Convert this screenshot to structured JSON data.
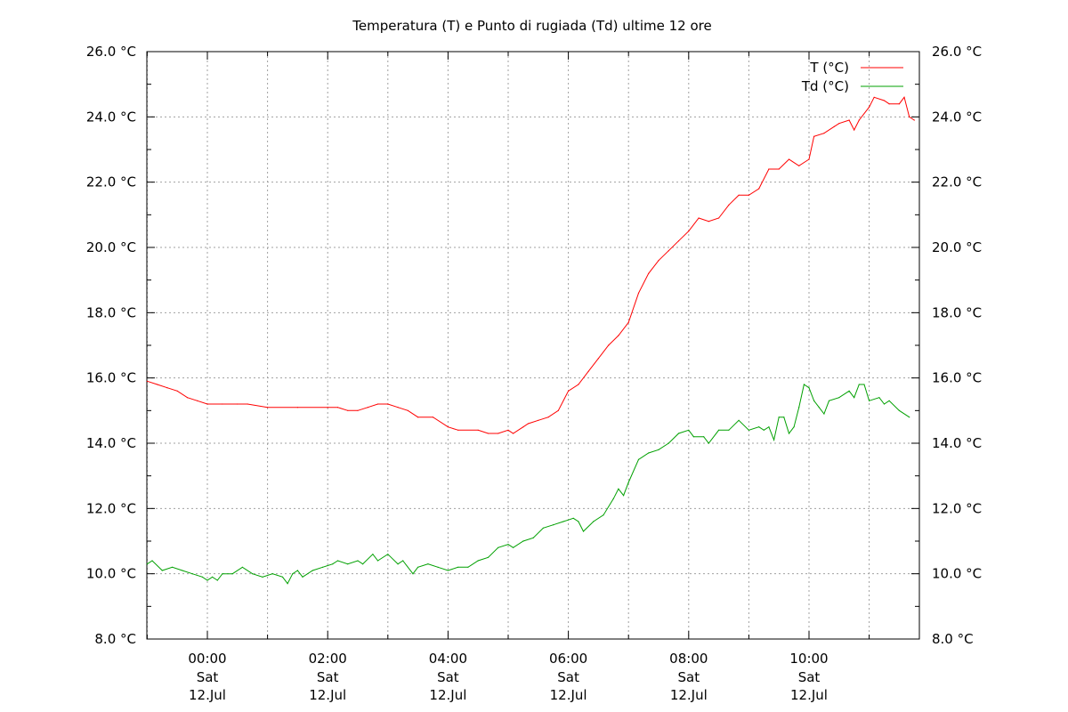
{
  "chart_data": {
    "type": "line",
    "title": "Temperatura (T) e Punto di rugiada (Td) ultime 12 ore",
    "xlabel": "",
    "ylabel": "",
    "ylim": [
      8.0,
      26.0
    ],
    "y_ticks": [
      8.0,
      10.0,
      12.0,
      14.0,
      16.0,
      18.0,
      20.0,
      22.0,
      24.0,
      26.0
    ],
    "y_tick_labels": [
      "8.0 °C",
      "10.0 °C",
      "12.0 °C",
      "14.0 °C",
      "16.0 °C",
      "18.0 °C",
      "20.0 °C",
      "22.0 °C",
      "24.0 °C",
      "26.0 °C"
    ],
    "xlim": [
      "11 Jul 23:00",
      "12 Jul 11:55"
    ],
    "x_ticks": [
      {
        "time": "00:00",
        "day": "Sat",
        "date": "12.Jul"
      },
      {
        "time": "02:00",
        "day": "Sat",
        "date": "12.Jul"
      },
      {
        "time": "04:00",
        "day": "Sat",
        "date": "12.Jul"
      },
      {
        "time": "06:00",
        "day": "Sat",
        "date": "12.Jul"
      },
      {
        "time": "08:00",
        "day": "Sat",
        "date": "12.Jul"
      },
      {
        "time": "10:00",
        "day": "Sat",
        "date": "12.Jul"
      }
    ],
    "grid": true,
    "legend_position": "top-right",
    "series": [
      {
        "name": "T (°C)",
        "color": "#ff0000",
        "points": [
          [
            "23:00",
            15.9
          ],
          [
            "23:10",
            15.8
          ],
          [
            "23:20",
            15.7
          ],
          [
            "23:30",
            15.6
          ],
          [
            "23:40",
            15.4
          ],
          [
            "23:50",
            15.3
          ],
          [
            "00:00",
            15.2
          ],
          [
            "00:15",
            15.2
          ],
          [
            "00:30",
            15.2
          ],
          [
            "00:40",
            15.2
          ],
          [
            "01:00",
            15.1
          ],
          [
            "01:30",
            15.1
          ],
          [
            "02:00",
            15.1
          ],
          [
            "02:10",
            15.1
          ],
          [
            "02:20",
            15.0
          ],
          [
            "02:30",
            15.0
          ],
          [
            "02:40",
            15.1
          ],
          [
            "02:50",
            15.2
          ],
          [
            "03:00",
            15.2
          ],
          [
            "03:10",
            15.1
          ],
          [
            "03:20",
            15.0
          ],
          [
            "03:30",
            14.8
          ],
          [
            "03:45",
            14.8
          ],
          [
            "04:00",
            14.5
          ],
          [
            "04:10",
            14.4
          ],
          [
            "04:30",
            14.4
          ],
          [
            "04:40",
            14.3
          ],
          [
            "04:50",
            14.3
          ],
          [
            "05:00",
            14.4
          ],
          [
            "05:05",
            14.3
          ],
          [
            "05:15",
            14.5
          ],
          [
            "05:20",
            14.6
          ],
          [
            "05:30",
            14.7
          ],
          [
            "05:40",
            14.8
          ],
          [
            "05:50",
            15.0
          ],
          [
            "06:00",
            15.6
          ],
          [
            "06:10",
            15.8
          ],
          [
            "06:20",
            16.2
          ],
          [
            "06:30",
            16.6
          ],
          [
            "06:40",
            17.0
          ],
          [
            "06:50",
            17.3
          ],
          [
            "07:00",
            17.7
          ],
          [
            "07:10",
            18.6
          ],
          [
            "07:20",
            19.2
          ],
          [
            "07:30",
            19.6
          ],
          [
            "07:40",
            19.9
          ],
          [
            "07:50",
            20.2
          ],
          [
            "08:00",
            20.5
          ],
          [
            "08:10",
            20.9
          ],
          [
            "08:20",
            20.8
          ],
          [
            "08:30",
            20.9
          ],
          [
            "08:40",
            21.3
          ],
          [
            "08:50",
            21.6
          ],
          [
            "09:00",
            21.6
          ],
          [
            "09:10",
            21.8
          ],
          [
            "09:20",
            22.4
          ],
          [
            "09:30",
            22.4
          ],
          [
            "09:40",
            22.7
          ],
          [
            "09:50",
            22.5
          ],
          [
            "10:00",
            22.7
          ],
          [
            "10:05",
            23.4
          ],
          [
            "10:15",
            23.5
          ],
          [
            "10:25",
            23.7
          ],
          [
            "10:30",
            23.8
          ],
          [
            "10:40",
            23.9
          ],
          [
            "10:45",
            23.6
          ],
          [
            "10:50",
            23.9
          ],
          [
            "11:00",
            24.3
          ],
          [
            "11:05",
            24.6
          ],
          [
            "11:15",
            24.5
          ],
          [
            "11:20",
            24.4
          ],
          [
            "11:30",
            24.4
          ],
          [
            "11:35",
            24.6
          ],
          [
            "11:40",
            24.0
          ],
          [
            "11:45",
            23.9
          ]
        ]
      },
      {
        "name": "Td (°C)",
        "color": "#00a000",
        "points": [
          [
            "23:00",
            10.3
          ],
          [
            "23:05",
            10.4
          ],
          [
            "23:15",
            10.1
          ],
          [
            "23:25",
            10.2
          ],
          [
            "23:35",
            10.1
          ],
          [
            "23:45",
            10.0
          ],
          [
            "23:55",
            9.9
          ],
          [
            "00:00",
            9.8
          ],
          [
            "00:05",
            9.9
          ],
          [
            "00:10",
            9.8
          ],
          [
            "00:15",
            10.0
          ],
          [
            "00:25",
            10.0
          ],
          [
            "00:35",
            10.2
          ],
          [
            "00:45",
            10.0
          ],
          [
            "00:55",
            9.9
          ],
          [
            "01:05",
            10.0
          ],
          [
            "01:15",
            9.9
          ],
          [
            "01:20",
            9.7
          ],
          [
            "01:25",
            10.0
          ],
          [
            "01:30",
            10.1
          ],
          [
            "01:35",
            9.9
          ],
          [
            "01:45",
            10.1
          ],
          [
            "01:55",
            10.2
          ],
          [
            "02:05",
            10.3
          ],
          [
            "02:10",
            10.4
          ],
          [
            "02:20",
            10.3
          ],
          [
            "02:30",
            10.4
          ],
          [
            "02:35",
            10.3
          ],
          [
            "02:45",
            10.6
          ],
          [
            "02:50",
            10.4
          ],
          [
            "03:00",
            10.6
          ],
          [
            "03:10",
            10.3
          ],
          [
            "03:15",
            10.4
          ],
          [
            "03:25",
            10.0
          ],
          [
            "03:30",
            10.2
          ],
          [
            "03:40",
            10.3
          ],
          [
            "03:50",
            10.2
          ],
          [
            "04:00",
            10.1
          ],
          [
            "04:10",
            10.2
          ],
          [
            "04:20",
            10.2
          ],
          [
            "04:30",
            10.4
          ],
          [
            "04:40",
            10.5
          ],
          [
            "04:50",
            10.8
          ],
          [
            "05:00",
            10.9
          ],
          [
            "05:05",
            10.8
          ],
          [
            "05:15",
            11.0
          ],
          [
            "05:25",
            11.1
          ],
          [
            "05:35",
            11.4
          ],
          [
            "05:45",
            11.5
          ],
          [
            "05:55",
            11.6
          ],
          [
            "06:05",
            11.7
          ],
          [
            "06:10",
            11.6
          ],
          [
            "06:15",
            11.3
          ],
          [
            "06:25",
            11.6
          ],
          [
            "06:35",
            11.8
          ],
          [
            "06:45",
            12.3
          ],
          [
            "06:50",
            12.6
          ],
          [
            "06:55",
            12.4
          ],
          [
            "07:00",
            12.8
          ],
          [
            "07:10",
            13.5
          ],
          [
            "07:20",
            13.7
          ],
          [
            "07:30",
            13.8
          ],
          [
            "07:40",
            14.0
          ],
          [
            "07:50",
            14.3
          ],
          [
            "08:00",
            14.4
          ],
          [
            "08:05",
            14.2
          ],
          [
            "08:15",
            14.2
          ],
          [
            "08:20",
            14.0
          ],
          [
            "08:30",
            14.4
          ],
          [
            "08:40",
            14.4
          ],
          [
            "08:50",
            14.7
          ],
          [
            "09:00",
            14.4
          ],
          [
            "09:10",
            14.5
          ],
          [
            "09:15",
            14.4
          ],
          [
            "09:20",
            14.5
          ],
          [
            "09:25",
            14.1
          ],
          [
            "09:30",
            14.8
          ],
          [
            "09:35",
            14.8
          ],
          [
            "09:40",
            14.3
          ],
          [
            "09:45",
            14.5
          ],
          [
            "09:50",
            15.1
          ],
          [
            "09:55",
            15.8
          ],
          [
            "10:00",
            15.7
          ],
          [
            "10:05",
            15.3
          ],
          [
            "10:10",
            15.1
          ],
          [
            "10:15",
            14.9
          ],
          [
            "10:20",
            15.3
          ],
          [
            "10:30",
            15.4
          ],
          [
            "10:40",
            15.6
          ],
          [
            "10:45",
            15.4
          ],
          [
            "10:50",
            15.8
          ],
          [
            "10:55",
            15.8
          ],
          [
            "11:00",
            15.3
          ],
          [
            "11:10",
            15.4
          ],
          [
            "11:15",
            15.2
          ],
          [
            "11:20",
            15.3
          ],
          [
            "11:30",
            15.0
          ],
          [
            "11:40",
            14.8
          ]
        ]
      }
    ]
  }
}
